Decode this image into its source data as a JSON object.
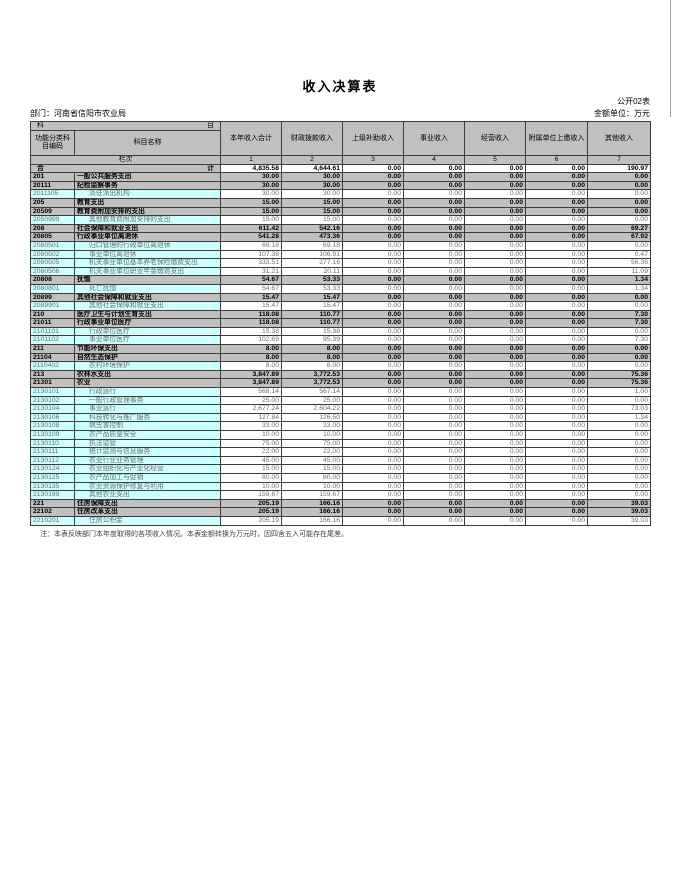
{
  "page": {
    "title": "收入决算表",
    "doc_label": "公开02表",
    "department": "部门：河南省信阳市农业局",
    "unit": "金额单位：万元",
    "note": "注：本表反映部门本年度取得的各项收入情况。本表金额转换为万元时，因四舍五入可能存在尾差。"
  },
  "table": {
    "corner": {
      "left": "科",
      "right": "目"
    },
    "col1_header": "功能分类科目编码",
    "col2_header": "科目名称",
    "value_headers": [
      "本年收入合计",
      "财政拨款收入",
      "上级补助收入",
      "事业收入",
      "经营收入",
      "附属单位上缴收入",
      "其他收入"
    ],
    "lanci_label": "栏次",
    "lanci_numbers": [
      "1",
      "2",
      "3",
      "4",
      "5",
      "6",
      "7"
    ],
    "total_row": {
      "label_left": "合",
      "label_right": "计",
      "values": [
        "4,835.58",
        "4,644.61",
        "0.00",
        "0.00",
        "0.00",
        "0.00",
        "190.97"
      ]
    },
    "rows": [
      {
        "code": "201",
        "name": "一般公共服务支出",
        "level": 1,
        "values": [
          "30.00",
          "30.00",
          "0.00",
          "0.00",
          "0.00",
          "0.00",
          "0.00"
        ]
      },
      {
        "code": "20111",
        "name": "纪检监察事务",
        "level": 2,
        "values": [
          "30.00",
          "30.00",
          "0.00",
          "0.00",
          "0.00",
          "0.00",
          "0.00"
        ]
      },
      {
        "code": "2011105",
        "name": "派驻派出机构",
        "level": 3,
        "values": [
          "30.00",
          "30.00",
          "0.00",
          "0.00",
          "0.00",
          "0.00",
          "0.00"
        ]
      },
      {
        "code": "205",
        "name": "教育支出",
        "level": 1,
        "values": [
          "15.00",
          "15.00",
          "0.00",
          "0.00",
          "0.00",
          "0.00",
          "0.00"
        ]
      },
      {
        "code": "20509",
        "name": "教育费附加安排的支出",
        "level": 2,
        "values": [
          "15.00",
          "15.00",
          "0.00",
          "0.00",
          "0.00",
          "0.00",
          "0.00"
        ]
      },
      {
        "code": "2050999",
        "name": "其他教育费附加安排的支出",
        "level": 3,
        "values": [
          "15.00",
          "15.00",
          "0.00",
          "0.00",
          "0.00",
          "0.00",
          "0.00"
        ]
      },
      {
        "code": "208",
        "name": "社会保障和就业支出",
        "level": 1,
        "values": [
          "611.42",
          "542.16",
          "0.00",
          "0.00",
          "0.00",
          "0.00",
          "69.27"
        ]
      },
      {
        "code": "20805",
        "name": "行政事业单位离退休",
        "level": 2,
        "values": [
          "541.28",
          "473.36",
          "0.00",
          "0.00",
          "0.00",
          "0.00",
          "67.92"
        ]
      },
      {
        "code": "2080501",
        "name": "归口管理的行政单位离退休",
        "level": 3,
        "values": [
          "69.18",
          "69.18",
          "0.00",
          "0.00",
          "0.00",
          "0.00",
          "0.00"
        ]
      },
      {
        "code": "2080502",
        "name": "事业单位离退休",
        "level": 3,
        "values": [
          "107.38",
          "106.91",
          "0.00",
          "0.00",
          "0.00",
          "0.00",
          "0.47"
        ]
      },
      {
        "code": "2080505",
        "name": "机关事业单位基本养老保险缴费支出",
        "level": 3,
        "values": [
          "333.51",
          "277.16",
          "0.00",
          "0.00",
          "0.00",
          "0.00",
          "56.36"
        ]
      },
      {
        "code": "2080506",
        "name": "机关事业单位职业年金缴费支出",
        "level": 3,
        "values": [
          "31.21",
          "20.11",
          "0.00",
          "0.00",
          "0.00",
          "0.00",
          "11.09"
        ]
      },
      {
        "code": "20808",
        "name": "抚恤",
        "level": 2,
        "values": [
          "54.67",
          "53.33",
          "0.00",
          "0.00",
          "0.00",
          "0.00",
          "1.34"
        ]
      },
      {
        "code": "2080801",
        "name": "死亡抚恤",
        "level": 3,
        "values": [
          "54.67",
          "53.33",
          "0.00",
          "0.00",
          "0.00",
          "0.00",
          "1.34"
        ]
      },
      {
        "code": "20899",
        "name": "其他社会保障和就业支出",
        "level": 2,
        "values": [
          "15.47",
          "15.47",
          "0.00",
          "0.00",
          "0.00",
          "0.00",
          "0.00"
        ]
      },
      {
        "code": "2089901",
        "name": "其他社会保障和就业支出",
        "level": 3,
        "values": [
          "15.47",
          "15.47",
          "0.00",
          "0.00",
          "0.00",
          "0.00",
          "0.00"
        ]
      },
      {
        "code": "210",
        "name": "医疗卫生与计划生育支出",
        "level": 1,
        "values": [
          "118.08",
          "110.77",
          "0.00",
          "0.00",
          "0.00",
          "0.00",
          "7.30"
        ]
      },
      {
        "code": "21011",
        "name": "行政事业单位医疗",
        "level": 2,
        "values": [
          "118.08",
          "110.77",
          "0.00",
          "0.00",
          "0.00",
          "0.00",
          "7.30"
        ]
      },
      {
        "code": "2101101",
        "name": "行政单位医疗",
        "level": 3,
        "values": [
          "15.38",
          "15.38",
          "0.00",
          "0.00",
          "0.00",
          "0.00",
          "0.00"
        ]
      },
      {
        "code": "2101102",
        "name": "事业单位医疗",
        "level": 3,
        "values": [
          "102.69",
          "95.39",
          "0.00",
          "0.00",
          "0.00",
          "0.00",
          "7.30"
        ]
      },
      {
        "code": "211",
        "name": "节能环保支出",
        "level": 1,
        "values": [
          "8.00",
          "8.00",
          "0.00",
          "0.00",
          "0.00",
          "0.00",
          "0.00"
        ]
      },
      {
        "code": "21104",
        "name": "自然生态保护",
        "level": 2,
        "values": [
          "8.00",
          "8.00",
          "0.00",
          "0.00",
          "0.00",
          "0.00",
          "0.00"
        ]
      },
      {
        "code": "2110402",
        "name": "农村环境保护",
        "level": 3,
        "values": [
          "8.00",
          "8.00",
          "0.00",
          "0.00",
          "0.00",
          "0.00",
          "0.00"
        ]
      },
      {
        "code": "213",
        "name": "农林水支出",
        "level": 1,
        "values": [
          "3,847.89",
          "3,772.53",
          "0.00",
          "0.00",
          "0.00",
          "0.00",
          "75.36"
        ]
      },
      {
        "code": "21301",
        "name": "农业",
        "level": 2,
        "values": [
          "3,847.89",
          "3,772.53",
          "0.00",
          "0.00",
          "0.00",
          "0.00",
          "75.36"
        ]
      },
      {
        "code": "2130101",
        "name": "行政运行",
        "level": 3,
        "values": [
          "568.14",
          "567.14",
          "0.00",
          "0.00",
          "0.00",
          "0.00",
          "1.00"
        ]
      },
      {
        "code": "2130102",
        "name": "一般行政管理事务",
        "level": 3,
        "values": [
          "25.00",
          "25.00",
          "0.00",
          "0.00",
          "0.00",
          "0.00",
          "0.00"
        ]
      },
      {
        "code": "2130104",
        "name": "事业运行",
        "level": 3,
        "values": [
          "2,677.24",
          "2,604.22",
          "0.00",
          "0.00",
          "0.00",
          "0.00",
          "73.03"
        ]
      },
      {
        "code": "2130106",
        "name": "科技转化与推广服务",
        "level": 3,
        "values": [
          "127.84",
          "126.50",
          "0.00",
          "0.00",
          "0.00",
          "0.00",
          "1.34"
        ]
      },
      {
        "code": "2130108",
        "name": "病虫害控制",
        "level": 3,
        "values": [
          "33.00",
          "33.00",
          "0.00",
          "0.00",
          "0.00",
          "0.00",
          "0.00"
        ]
      },
      {
        "code": "2130109",
        "name": "农产品质量安全",
        "level": 3,
        "values": [
          "10.00",
          "10.00",
          "0.00",
          "0.00",
          "0.00",
          "0.00",
          "0.00"
        ]
      },
      {
        "code": "2130110",
        "name": "执法监管",
        "level": 3,
        "values": [
          "75.00",
          "75.00",
          "0.00",
          "0.00",
          "0.00",
          "0.00",
          "0.00"
        ]
      },
      {
        "code": "2130111",
        "name": "统计监测与信息服务",
        "level": 3,
        "values": [
          "22.00",
          "22.00",
          "0.00",
          "0.00",
          "0.00",
          "0.00",
          "0.00"
        ]
      },
      {
        "code": "2130112",
        "name": "农业行业业务管理",
        "level": 3,
        "values": [
          "45.00",
          "45.00",
          "0.00",
          "0.00",
          "0.00",
          "0.00",
          "0.00"
        ]
      },
      {
        "code": "2130124",
        "name": "农业组织化与产业化经营",
        "level": 3,
        "values": [
          "15.00",
          "15.00",
          "0.00",
          "0.00",
          "0.00",
          "0.00",
          "0.00"
        ]
      },
      {
        "code": "2130125",
        "name": "农产品加工与促销",
        "level": 3,
        "values": [
          "80.00",
          "80.00",
          "0.00",
          "0.00",
          "0.00",
          "0.00",
          "0.00"
        ]
      },
      {
        "code": "2130135",
        "name": "农业资源保护修复与利用",
        "level": 3,
        "values": [
          "10.00",
          "10.00",
          "0.00",
          "0.00",
          "0.00",
          "0.00",
          "0.00"
        ]
      },
      {
        "code": "2130199",
        "name": "其他农业支出",
        "level": 3,
        "values": [
          "159.67",
          "159.67",
          "0.00",
          "0.00",
          "0.00",
          "0.00",
          "0.00"
        ]
      },
      {
        "code": "221",
        "name": "住房保障支出",
        "level": 1,
        "values": [
          "205.19",
          "166.16",
          "0.00",
          "0.00",
          "0.00",
          "0.00",
          "39.03"
        ]
      },
      {
        "code": "22102",
        "name": "住房改革支出",
        "level": 2,
        "values": [
          "205.19",
          "166.16",
          "0.00",
          "0.00",
          "0.00",
          "0.00",
          "39.03"
        ]
      },
      {
        "code": "2210201",
        "name": "住房公积金",
        "level": 3,
        "values": [
          "205.19",
          "166.16",
          "0.00",
          "0.00",
          "0.00",
          "0.00",
          "39.03"
        ]
      }
    ]
  }
}
